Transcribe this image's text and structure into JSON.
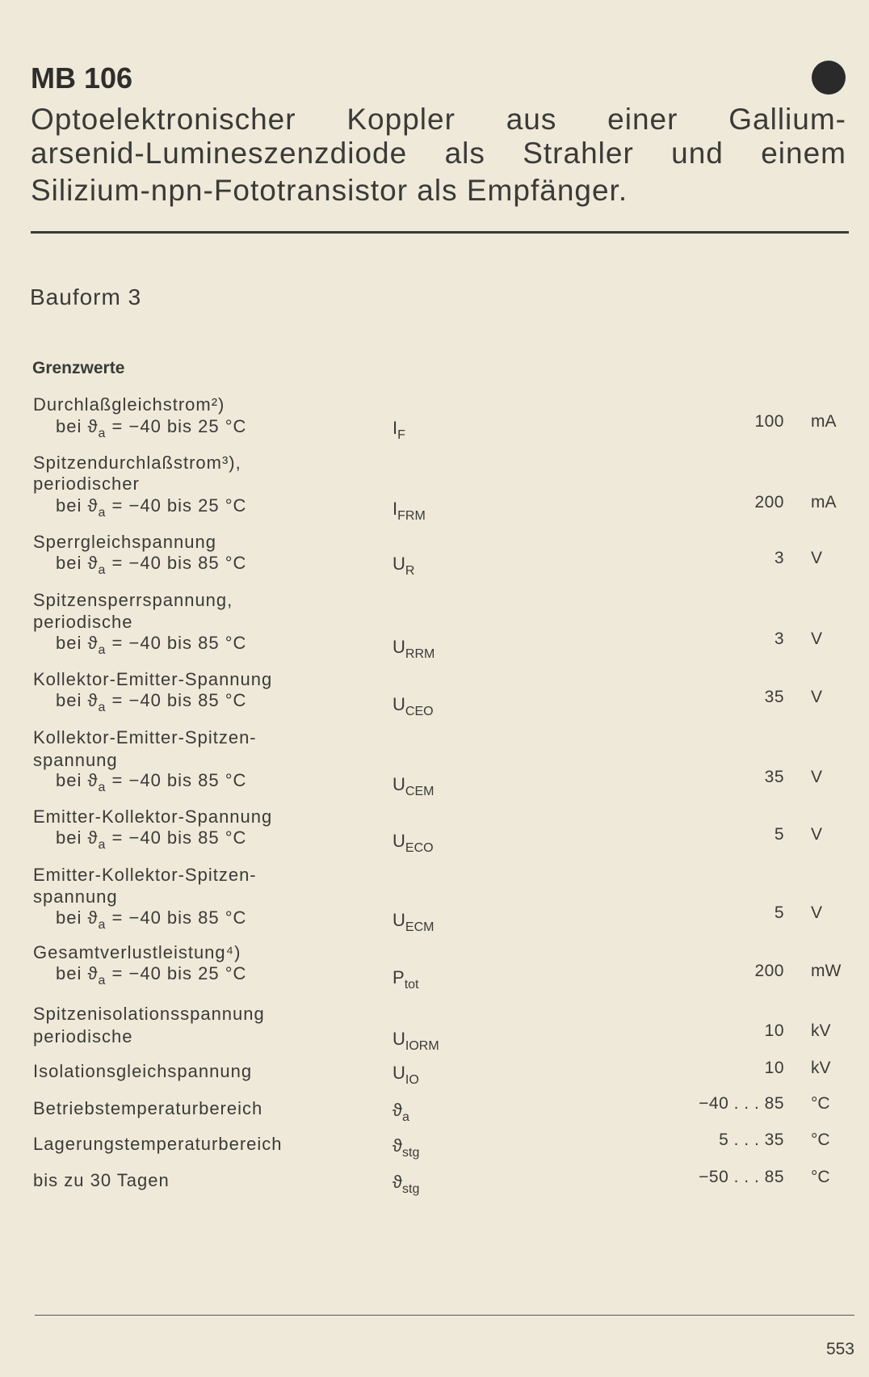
{
  "header": {
    "title": "MB 106",
    "marker_icon": "filled-circle"
  },
  "description": [
    "Optoelektronischer Koppler aus einer Gallium-",
    "arsenid-Lumineszenzdiode als Strahler und einem",
    "Silizium-npn-Fototransistor als Empfänger."
  ],
  "package": "Bauform 3",
  "section": "Grenzwerte",
  "rows": [
    {
      "label": [
        "Durchlaßgleichstrom²)"
      ],
      "cond": {
        "pre": "bei ϑ",
        "sub": "a",
        "rest": " = −40 bis 25 °C"
      },
      "sym": {
        "main": "I",
        "sub": "F"
      },
      "value": "100",
      "unit": "mA"
    },
    {
      "label": [
        "Spitzendurchlaßstrom³),",
        "periodischer"
      ],
      "cond": {
        "pre": "bei ϑ",
        "sub": "a",
        "rest": " = −40 bis 25 °C"
      },
      "sym": {
        "main": "I",
        "sub": "FRM"
      },
      "value": "200",
      "unit": "mA"
    },
    {
      "label": [
        "Sperrgleichspannung"
      ],
      "cond": {
        "pre": "bei ϑ",
        "sub": "a",
        "rest": " = −40 bis 85 °C"
      },
      "sym": {
        "main": "U",
        "sub": "R"
      },
      "value": "3",
      "unit": "V"
    },
    {
      "label": [
        "Spitzensperrspannung,",
        "periodische"
      ],
      "cond": {
        "pre": "bei ϑ",
        "sub": "a",
        "rest": " = −40 bis 85 °C"
      },
      "sym": {
        "main": "U",
        "sub": "RRM"
      },
      "value": "3",
      "unit": "V"
    },
    {
      "label": [
        "Kollektor-Emitter-Spannung"
      ],
      "cond": {
        "pre": "bei ϑ",
        "sub": "a",
        "rest": " = −40 bis 85 °C"
      },
      "sym": {
        "main": "U",
        "sub": "CEO"
      },
      "value": "35",
      "unit": "V"
    },
    {
      "label": [
        "Kollektor-Emitter-Spitzen-",
        "spannung"
      ],
      "cond": {
        "pre": "bei ϑ",
        "sub": "a",
        "rest": " = −40 bis 85 °C"
      },
      "sym": {
        "main": "U",
        "sub": "CEM"
      },
      "value": "35",
      "unit": "V"
    },
    {
      "label": [
        "Emitter-Kollektor-Spannung"
      ],
      "cond": {
        "pre": "bei ϑ",
        "sub": "a",
        "rest": " = −40 bis 85 °C"
      },
      "sym": {
        "main": "U",
        "sub": "ECO"
      },
      "value": "5",
      "unit": "V"
    },
    {
      "label": [
        "Emitter-Kollektor-Spitzen-",
        "spannung"
      ],
      "cond": {
        "pre": "bei ϑ",
        "sub": "a",
        "rest": " = −40 bis 85 °C"
      },
      "sym": {
        "main": "U",
        "sub": "ECM"
      },
      "value": "5",
      "unit": "V"
    },
    {
      "label": [
        "Gesamtverlustleistung⁴)"
      ],
      "cond": {
        "pre": "bei ϑ",
        "sub": "a",
        "rest": " = −40 bis 25 °C"
      },
      "sym": {
        "main": "P",
        "sub": "tot"
      },
      "value": "200",
      "unit": "mW"
    },
    {
      "label": [
        "Spitzenisolationsspannung",
        "periodische"
      ],
      "sym": {
        "main": "U",
        "sub": "IORM"
      },
      "value": "10",
      "unit": "kV"
    },
    {
      "label": [
        "Isolationsgleichspannung"
      ],
      "sym": {
        "main": "U",
        "sub": "IO"
      },
      "value": "10",
      "unit": "kV"
    },
    {
      "label": [
        "Betriebstemperaturbereich"
      ],
      "sym": {
        "main": "ϑ",
        "sub": "a"
      },
      "value": "−40 . . . 85",
      "unit": "°C"
    },
    {
      "label": [
        "Lagerungstemperaturbereich"
      ],
      "sym": {
        "main": "ϑ",
        "sub": "stg"
      },
      "value": "5 . . . 35",
      "unit": "°C"
    },
    {
      "label": [
        "bis zu 30 Tagen"
      ],
      "sym": {
        "main": "ϑ",
        "sub": "stg"
      },
      "value": "−50 . . . 85",
      "unit": "°C"
    }
  ],
  "page_number": "553"
}
